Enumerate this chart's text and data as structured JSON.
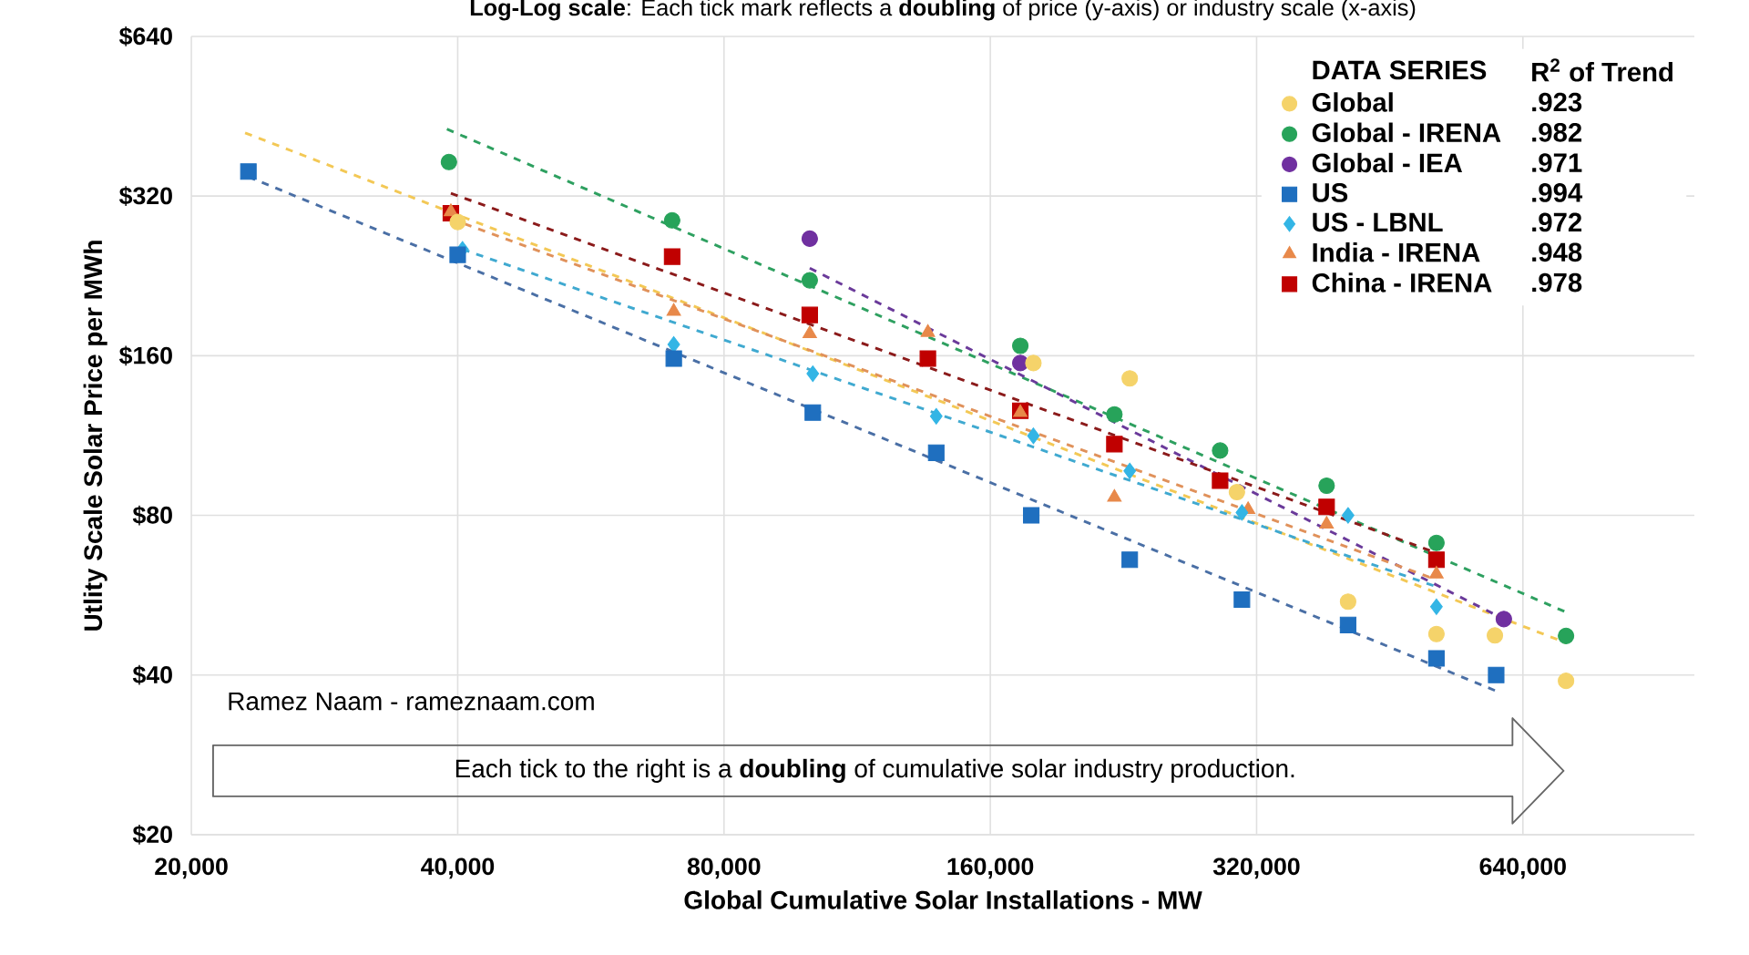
{
  "chart_data": {
    "type": "scatter",
    "title": "**Log-Log scale**: Each tick mark reflects a **doubling** of price (y-axis) or industry scale (x-axis)",
    "xlabel": "Global Cumulative Solar Installations - MW",
    "ylabel": "Utlity Scale Solar Price per MWh",
    "legend_title": "DATA SERIES",
    "annotations": [
      "R$^{2}$ of Trend",
      ".923",
      ".982",
      ".971",
      ".994",
      ".972",
      ".948",
      ".978",
      "Ramez Naam - rameznaam.com",
      "Each tick to the right is a **doubling** of cumulative solar industry production."
    ],
    "log": "xy",
    "grid": true,
    "legend": "top right",
    "xlim": [
      20000,
      1000000
    ],
    "xticks": [
      {
        "value": 20000,
        "label": "20,000"
      },
      {
        "value": 40000,
        "label": "40,000"
      },
      {
        "value": 80000,
        "label": "80,000"
      },
      {
        "value": 160000,
        "label": "160,000"
      },
      {
        "value": 320000,
        "label": "320,000"
      },
      {
        "value": 640000,
        "label": "640,000"
      }
    ],
    "ylim": [
      20,
      640
    ],
    "yticks": [
      {
        "value": 20,
        "label": "$20"
      },
      {
        "value": 40,
        "label": "$40"
      },
      {
        "value": 80,
        "label": "$80"
      },
      {
        "value": 160,
        "label": "$160"
      },
      {
        "value": 320,
        "label": "$320"
      },
      {
        "value": 640,
        "label": "$640"
      }
    ],
    "series": [
      {
        "type": "line",
        "color": "#f3c855",
        "line_style": "dashed",
        "x": [
          23000,
          716000
        ],
        "values": [
          421,
          46
        ]
      },
      {
        "type": "line",
        "color": "#2ea060",
        "line_style": "dashed",
        "x": [
          38900,
          717000
        ],
        "values": [
          428,
          52.5
        ]
      },
      {
        "type": "line",
        "color": "#6a3a9a",
        "line_style": "dashed",
        "x": [
          100000,
          609000
        ],
        "values": [
          234,
          51
        ]
      },
      {
        "type": "line",
        "color": "#4a6fa5",
        "line_style": "dashed",
        "x": [
          23200,
          595000
        ],
        "values": [
          348,
          37.4
        ]
      },
      {
        "type": "line",
        "color": "#3fa9d0",
        "line_style": "dashed",
        "x": [
          40500,
          511000
        ],
        "values": [
          254,
          58.7
        ]
      },
      {
        "type": "line",
        "color": "#e0915a",
        "line_style": "dashed",
        "x": [
          39300,
          511000
        ],
        "values": [
          290,
          60.5
        ]
      },
      {
        "type": "line",
        "color": "#8b1a1a",
        "line_style": "dashed",
        "x": [
          39300,
          511000
        ],
        "values": [
          324,
          68
        ]
      },
      {
        "name": "Global",
        "color": "#f5d36a",
        "marker": "circle",
        "x": [
          40000,
          179000,
          230000,
          304000,
          406000,
          511000,
          595000,
          716000
        ],
        "values": [
          286,
          155,
          145,
          88.5,
          55,
          47.8,
          47.5,
          39
        ]
      },
      {
        "name": "Global - IRENA",
        "color": "#27a35a",
        "marker": "circle",
        "x": [
          39100,
          69900,
          100000,
          173000,
          221000,
          291000,
          384000,
          511000,
          716000
        ],
        "values": [
          371,
          288,
          222,
          167,
          124,
          106,
          91,
          71,
          47.4
        ]
      },
      {
        "name": "Global - IEA",
        "color": "#7030a0",
        "marker": "circle",
        "x": [
          100000,
          173000,
          609000
        ],
        "values": [
          266,
          155,
          51
        ]
      },
      {
        "name": "US",
        "color": "#1f6fbf",
        "marker": "square",
        "x": [
          23200,
          40000,
          70200,
          100800,
          139000,
          178000,
          230000,
          308000,
          406000,
          511000,
          597000
        ],
        "values": [
          356,
          248,
          158,
          125,
          105,
          80,
          66,
          55.5,
          49.7,
          43,
          40
        ]
      },
      {
        "name": "US - LBNL",
        "color": "#33b5e5",
        "marker": "diamond",
        "x": [
          40500,
          70200,
          100800,
          139000,
          179000,
          230000,
          308000,
          406000,
          511000
        ],
        "values": [
          254,
          168,
          148,
          123,
          113,
          97,
          81,
          80,
          53.8
        ]
      },
      {
        "name": "India - IRENA",
        "color": "#e8894a",
        "marker": "triangle",
        "x": [
          39300,
          70200,
          100000,
          136000,
          173000,
          221000,
          313000,
          384000,
          511000
        ],
        "values": [
          299,
          194,
          176,
          177,
          125,
          86.5,
          82,
          77,
          62
        ]
      },
      {
        "name": "China - IRENA",
        "color": "#c00000",
        "marker": "square",
        "x": [
          39300,
          69900,
          100000,
          136000,
          173000,
          221000,
          291000,
          384000,
          511000
        ],
        "values": [
          297,
          246,
          191,
          158,
          126,
          109,
          93,
          83,
          66
        ]
      }
    ]
  }
}
